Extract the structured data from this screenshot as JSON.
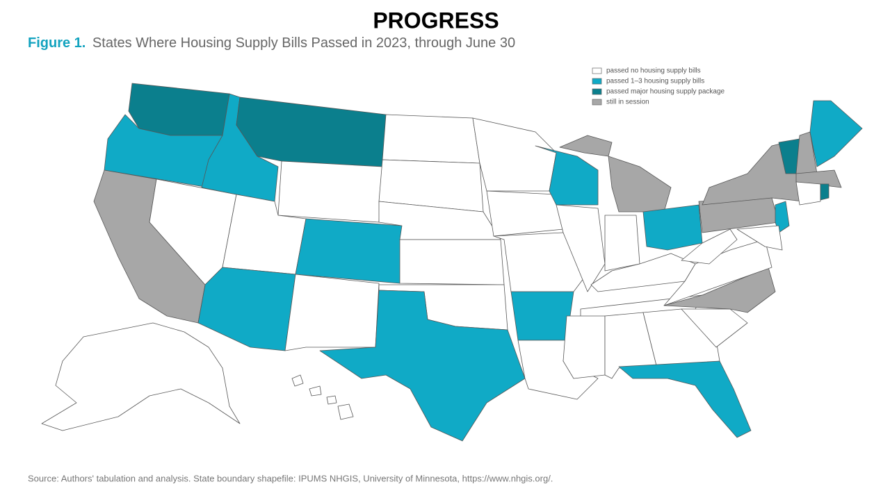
{
  "header": {
    "title": "PROGRESS"
  },
  "figure": {
    "label": "Figure 1.",
    "caption": "States Where Housing Supply Bills Passed in 2023, through June 30"
  },
  "legend": [
    {
      "label": "passed no housing supply bills",
      "color": "#ffffff"
    },
    {
      "label": "passed 1–3 housing supply bills",
      "color": "#10aac6"
    },
    {
      "label": "passed major housing supply package",
      "color": "#0b7f8d"
    },
    {
      "label": "still in session",
      "color": "#a7a7a7"
    }
  ],
  "source": "Source: Authors' tabulation and analysis. State boundary shapefile: IPUMS NHGIS, University of Minnesota, https://www.nhgis.org/."
}
